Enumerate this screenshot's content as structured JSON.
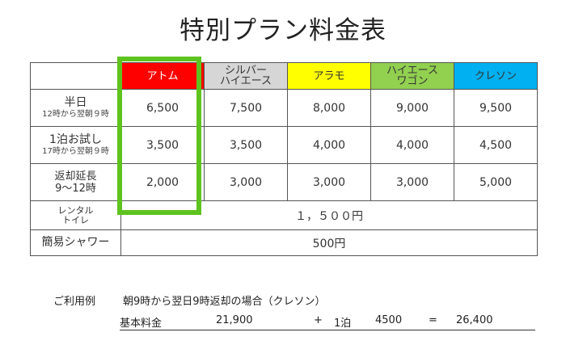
{
  "title": "特別プラン料金表",
  "header_corner": "",
  "columns": [
    {
      "label": "アトム",
      "bg": "#ff0000",
      "fg": "#ffffff"
    },
    {
      "label": "シルバー\nハイエース",
      "bg": "#d6d6d6",
      "fg": "#333333"
    },
    {
      "label": "アラモ",
      "bg": "#ffff00",
      "fg": "#333333"
    },
    {
      "label": "ハイエース\nワゴン",
      "bg": "#92d050",
      "fg": "#333333"
    },
    {
      "label": "クレソン",
      "bg": "#00b0f0",
      "fg": "#333333"
    }
  ],
  "rows": [
    {
      "label_main": "半日",
      "label_sub": "12時から翌朝９時",
      "values": [
        "6,500",
        "7,500",
        "8,000",
        "9,000",
        "9,500"
      ]
    },
    {
      "label_main": "1泊お試し",
      "label_sub": "17時から翌朝９時",
      "values": [
        "3,500",
        "3,500",
        "4,000",
        "4,000",
        "4,500"
      ]
    },
    {
      "label_main": "返却延長",
      "label_sub": "9～12時",
      "values": [
        "2,000",
        "3,000",
        "3,000",
        "3,000",
        "5,000"
      ]
    }
  ],
  "rental_toilet": {
    "label_line1": "レンタル",
    "label_line2": "トイレ",
    "value": "１，５００円"
  },
  "shower": {
    "label": "簡易シャワー",
    "value": "500円"
  },
  "example": {
    "label": "ご利用例",
    "text": "朝9時から翌日9時返却の場合（クレソン）",
    "calc": {
      "base_label": "基本料金",
      "base_value": "21,900",
      "plus": "+",
      "nights": "1泊",
      "night_price": "4500",
      "equals": "=",
      "total": "26,400"
    }
  },
  "colors": {
    "highlight": "#5fc31f",
    "border": "#555555"
  }
}
